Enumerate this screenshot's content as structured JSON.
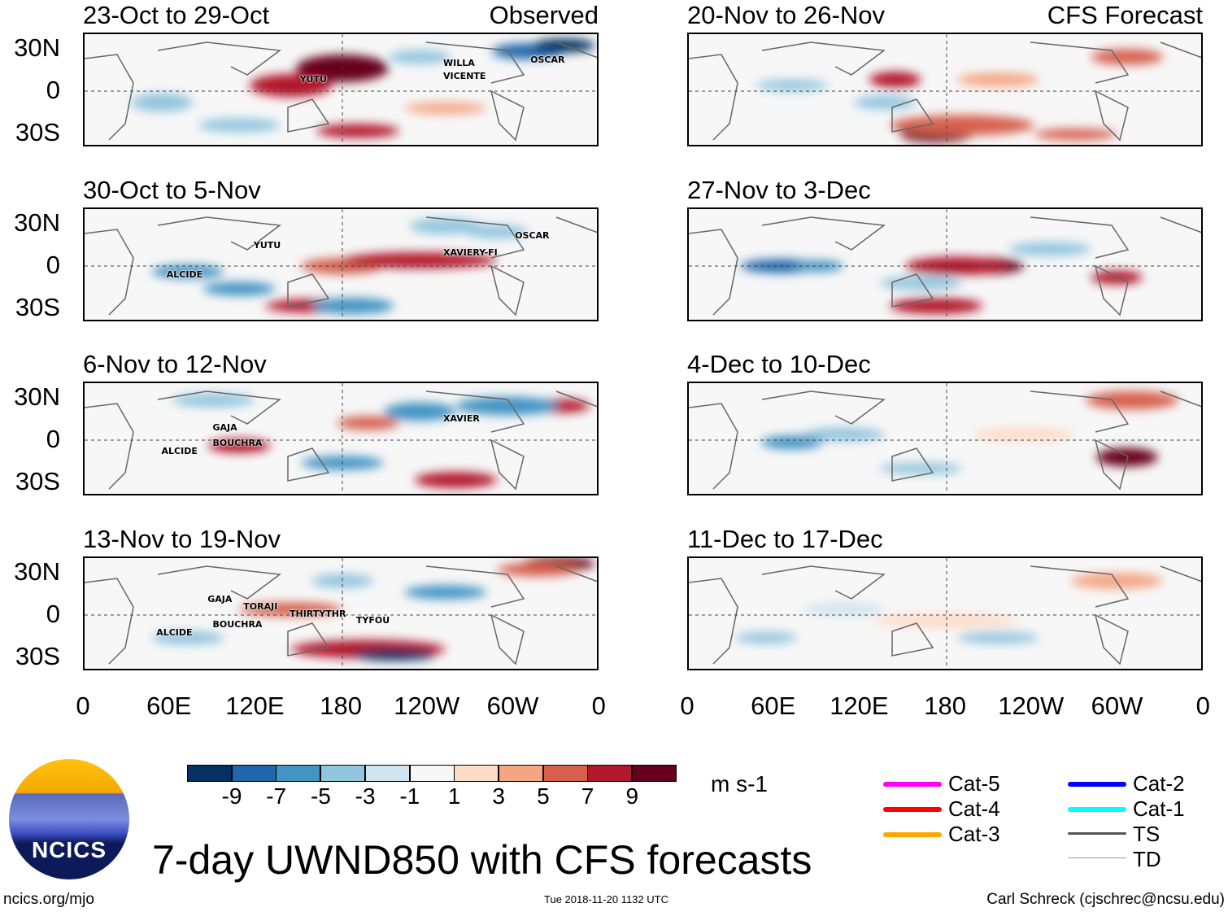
{
  "panels": [
    {
      "title": "23-Oct to 29-Oct",
      "tag": "Observed",
      "storms": [
        "YUTU",
        "OSCAR",
        "WILLA",
        "VICENTE"
      ]
    },
    {
      "title": "20-Nov to 26-Nov",
      "tag": "CFS Forecast",
      "storms": []
    },
    {
      "title": "30-Oct to 5-Nov",
      "storms": [
        "YUTU",
        "ALCIDE",
        "XAVIERY-FI",
        "OSCAR"
      ]
    },
    {
      "title": "27-Nov to 3-Dec",
      "storms": []
    },
    {
      "title": "6-Nov to 12-Nov",
      "storms": [
        "GAJA",
        "ALCIDE",
        "BOUCHRA",
        "XAVIER"
      ]
    },
    {
      "title": "4-Dec to 10-Dec",
      "storms": []
    },
    {
      "title": "13-Nov to 19-Nov",
      "storms": [
        "GAJA",
        "TORAJI",
        "THIRTYTHR",
        "TYFOU",
        "BOUCHRA",
        "ALCIDE"
      ]
    },
    {
      "title": "11-Dec to 17-Dec",
      "storms": []
    }
  ],
  "lat_labels": [
    "30N",
    "0",
    "30S"
  ],
  "lon_labels": [
    "0",
    "60E",
    "120E",
    "180",
    "120W",
    "60W",
    "0"
  ],
  "colorbar": {
    "colors": [
      "#053061",
      "#2166ac",
      "#4393c3",
      "#92c5de",
      "#d1e5f0",
      "#f7f7f7",
      "#fddbc7",
      "#f4a582",
      "#d6604d",
      "#b2182b",
      "#67001f"
    ],
    "ticks": [
      "-9",
      "-7",
      "-5",
      "-3",
      "-1",
      "1",
      "3",
      "5",
      "7",
      "9"
    ],
    "units": "m s-1"
  },
  "legend": [
    {
      "label": "Cat-5",
      "color": "#ff00ff"
    },
    {
      "label": "Cat-4",
      "color": "#ff0000"
    },
    {
      "label": "Cat-3",
      "color": "#ffa500"
    },
    {
      "label": "Cat-2",
      "color": "#0000ff"
    },
    {
      "label": "Cat-1",
      "color": "#00ffff"
    },
    {
      "label": "TS",
      "color": "#555555"
    },
    {
      "label": "TD",
      "color": "#999999"
    }
  ],
  "title": "7-day UWND850 with CFS forecasts",
  "logo_text": "NCICS",
  "footer": {
    "left": "ncics.org/mjo",
    "center": "Tue 2018-11-20 1132 UTC",
    "right": "Carl Schreck (cjschrec@ncsu.edu)"
  }
}
